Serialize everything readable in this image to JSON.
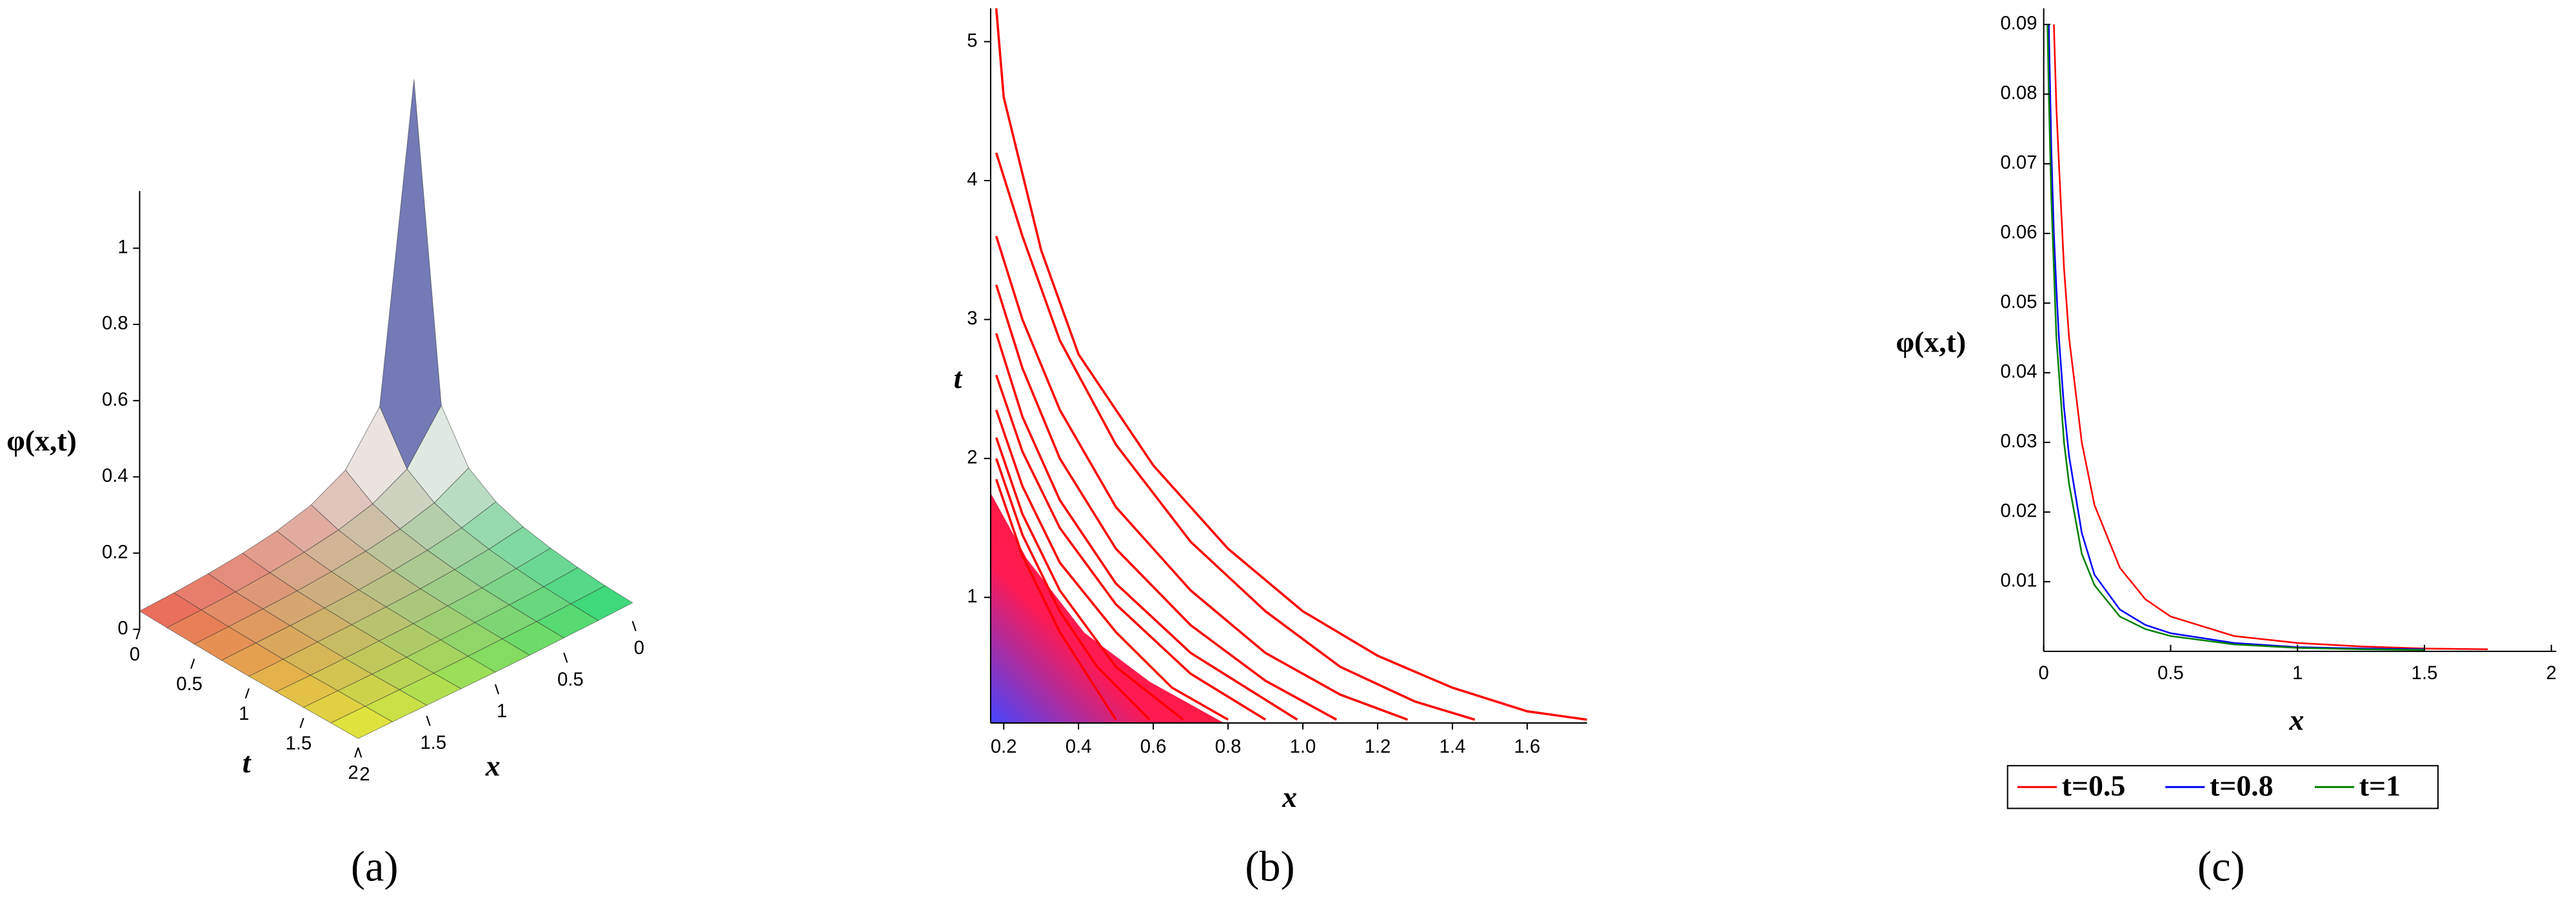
{
  "chart_data": [
    {
      "type": "surface",
      "caption": "(a)",
      "xlabel": "x",
      "ylabel": "t",
      "zlabel": "φ(x,t)",
      "x": [
        0,
        0.25,
        0.5,
        0.75,
        1,
        1.25,
        1.5,
        1.75,
        2
      ],
      "y": [
        0,
        0.25,
        0.5,
        0.75,
        1,
        1.25,
        1.5,
        1.75,
        2
      ],
      "values": [
        [
          1.111,
          0.294,
          0.169,
          0.119,
          0.092,
          0.075,
          0.063,
          0.054,
          0.048
        ],
        [
          0.294,
          0.169,
          0.119,
          0.092,
          0.075,
          0.063,
          0.054,
          0.048,
          0.043
        ],
        [
          0.169,
          0.119,
          0.092,
          0.075,
          0.063,
          0.054,
          0.048,
          0.043,
          0.039
        ],
        [
          0.119,
          0.092,
          0.075,
          0.063,
          0.054,
          0.048,
          0.043,
          0.039,
          0.035
        ],
        [
          0.092,
          0.075,
          0.063,
          0.054,
          0.048,
          0.043,
          0.039,
          0.035,
          0.032
        ],
        [
          0.075,
          0.063,
          0.054,
          0.048,
          0.043,
          0.039,
          0.035,
          0.032,
          0.03
        ],
        [
          0.063,
          0.054,
          0.048,
          0.043,
          0.039,
          0.035,
          0.032,
          0.03,
          0.028
        ],
        [
          0.054,
          0.048,
          0.043,
          0.039,
          0.035,
          0.032,
          0.03,
          0.028,
          0.026
        ],
        [
          0.048,
          0.043,
          0.039,
          0.035,
          0.032,
          0.03,
          0.028,
          0.026,
          0.024
        ]
      ],
      "xlim": [
        0,
        2
      ],
      "ylim": [
        0,
        2
      ],
      "zlim": [
        0,
        1.15
      ],
      "xticks": [
        0,
        0.5,
        1,
        1.5,
        2
      ],
      "yticks": [
        0,
        0.5,
        1,
        1.5,
        2
      ],
      "zticks": [
        0,
        0.2,
        0.4,
        0.6,
        0.8,
        1
      ]
    },
    {
      "type": "contour",
      "caption": "(b)",
      "xlabel": "x",
      "ylabel": "t",
      "xlim": [
        0.165,
        1.76
      ],
      "ylim": [
        0.096,
        5.24
      ],
      "xticks": [
        0.2,
        0.4,
        0.6,
        0.8,
        {
          "value": 1,
          "label": "1.0"
        },
        1.2,
        1.4,
        1.6
      ],
      "yticks": [
        1,
        2,
        3,
        4,
        5
      ],
      "series": [
        {
          "color": "#ff0000",
          "x": [
            0.18,
            0.2,
            0.3,
            0.4,
            0.6,
            0.8,
            1.0,
            1.2,
            1.4,
            1.6,
            1.76
          ],
          "values": [
            5.24,
            4.6,
            3.5,
            2.75,
            1.95,
            1.35,
            0.9,
            0.58,
            0.35,
            0.18,
            0.12
          ]
        },
        {
          "color": "#ff0000",
          "x": [
            0.18,
            0.25,
            0.35,
            0.5,
            0.7,
            0.9,
            1.1,
            1.3,
            1.46
          ],
          "values": [
            4.2,
            3.6,
            2.85,
            2.1,
            1.4,
            0.9,
            0.5,
            0.25,
            0.12
          ]
        },
        {
          "color": "#ff0000",
          "x": [
            0.18,
            0.25,
            0.35,
            0.5,
            0.7,
            0.9,
            1.1,
            1.28
          ],
          "values": [
            3.6,
            3.0,
            2.35,
            1.65,
            1.05,
            0.6,
            0.3,
            0.12
          ]
        },
        {
          "color": "#ff0000",
          "x": [
            0.18,
            0.25,
            0.35,
            0.5,
            0.7,
            0.9,
            1.09
          ],
          "values": [
            3.25,
            2.65,
            2.0,
            1.35,
            0.8,
            0.4,
            0.12
          ]
        },
        {
          "color": "#ff0000",
          "x": [
            0.18,
            0.25,
            0.35,
            0.5,
            0.7,
            0.985
          ],
          "values": [
            2.9,
            2.3,
            1.7,
            1.1,
            0.6,
            0.12
          ]
        },
        {
          "color": "#ff0000",
          "x": [
            0.18,
            0.25,
            0.35,
            0.5,
            0.7,
            0.9
          ],
          "values": [
            2.6,
            2.05,
            1.5,
            0.95,
            0.45,
            0.12
          ]
        },
        {
          "color": "#ff0000",
          "x": [
            0.18,
            0.25,
            0.35,
            0.5,
            0.65,
            0.8
          ],
          "values": [
            2.35,
            1.8,
            1.25,
            0.75,
            0.35,
            0.12
          ]
        },
        {
          "color": "#ff0000",
          "x": [
            0.18,
            0.25,
            0.35,
            0.5,
            0.68
          ],
          "values": [
            2.15,
            1.6,
            1.05,
            0.5,
            0.12
          ]
        },
        {
          "color": "#ff0000",
          "x": [
            0.18,
            0.25,
            0.35,
            0.45,
            0.59
          ],
          "values": [
            2.0,
            1.45,
            0.9,
            0.5,
            0.12
          ]
        },
        {
          "color": "#ff0000",
          "x": [
            0.18,
            0.25,
            0.35,
            0.5
          ],
          "values": [
            1.85,
            1.3,
            0.75,
            0.12
          ]
        }
      ]
    },
    {
      "type": "line",
      "caption": "(c)",
      "xlabel": "x",
      "ylabel": "φ(x,t)",
      "x": [
        0.015,
        0.02,
        0.03,
        0.04,
        0.05,
        0.06,
        0.08,
        0.1,
        0.15,
        0.2,
        0.3,
        0.4,
        0.5,
        0.75,
        1,
        1.25,
        1.5,
        1.75
      ],
      "xlim": [
        0,
        2
      ],
      "ylim": [
        0,
        0.091
      ],
      "xticks": [
        0,
        0.5,
        1,
        1.5,
        2
      ],
      "yticks": [
        0.01,
        0.02,
        0.03,
        0.04,
        0.05,
        0.06,
        0.07,
        0.08,
        0.09
      ],
      "legend": "bottom",
      "series": [
        {
          "name": "t=0.5",
          "color": "#ff0000",
          "values": [
            null,
            null,
            null,
            0.09,
            0.078,
            0.07,
            0.055,
            0.045,
            0.03,
            0.021,
            0.012,
            0.0075,
            0.005,
            0.0022,
            0.0012,
            0.0007,
            0.0004,
            0.0003
          ]
        },
        {
          "name": "t=0.8",
          "color": "#0000ff",
          "values": [
            null,
            0.09,
            0.072,
            0.06,
            0.052,
            0.045,
            0.035,
            0.028,
            0.017,
            0.011,
            0.006,
            0.0038,
            0.0026,
            0.0012,
            0.0006,
            0.0004,
            0.0003,
            null
          ]
        },
        {
          "name": "t=1",
          "color": "#008000",
          "values": [
            0.09,
            0.08,
            0.065,
            0.055,
            0.045,
            0.04,
            0.03,
            0.024,
            0.014,
            0.0095,
            0.005,
            0.0032,
            0.0022,
            0.001,
            0.0005,
            0.0003,
            0.0002,
            null
          ]
        }
      ]
    }
  ]
}
